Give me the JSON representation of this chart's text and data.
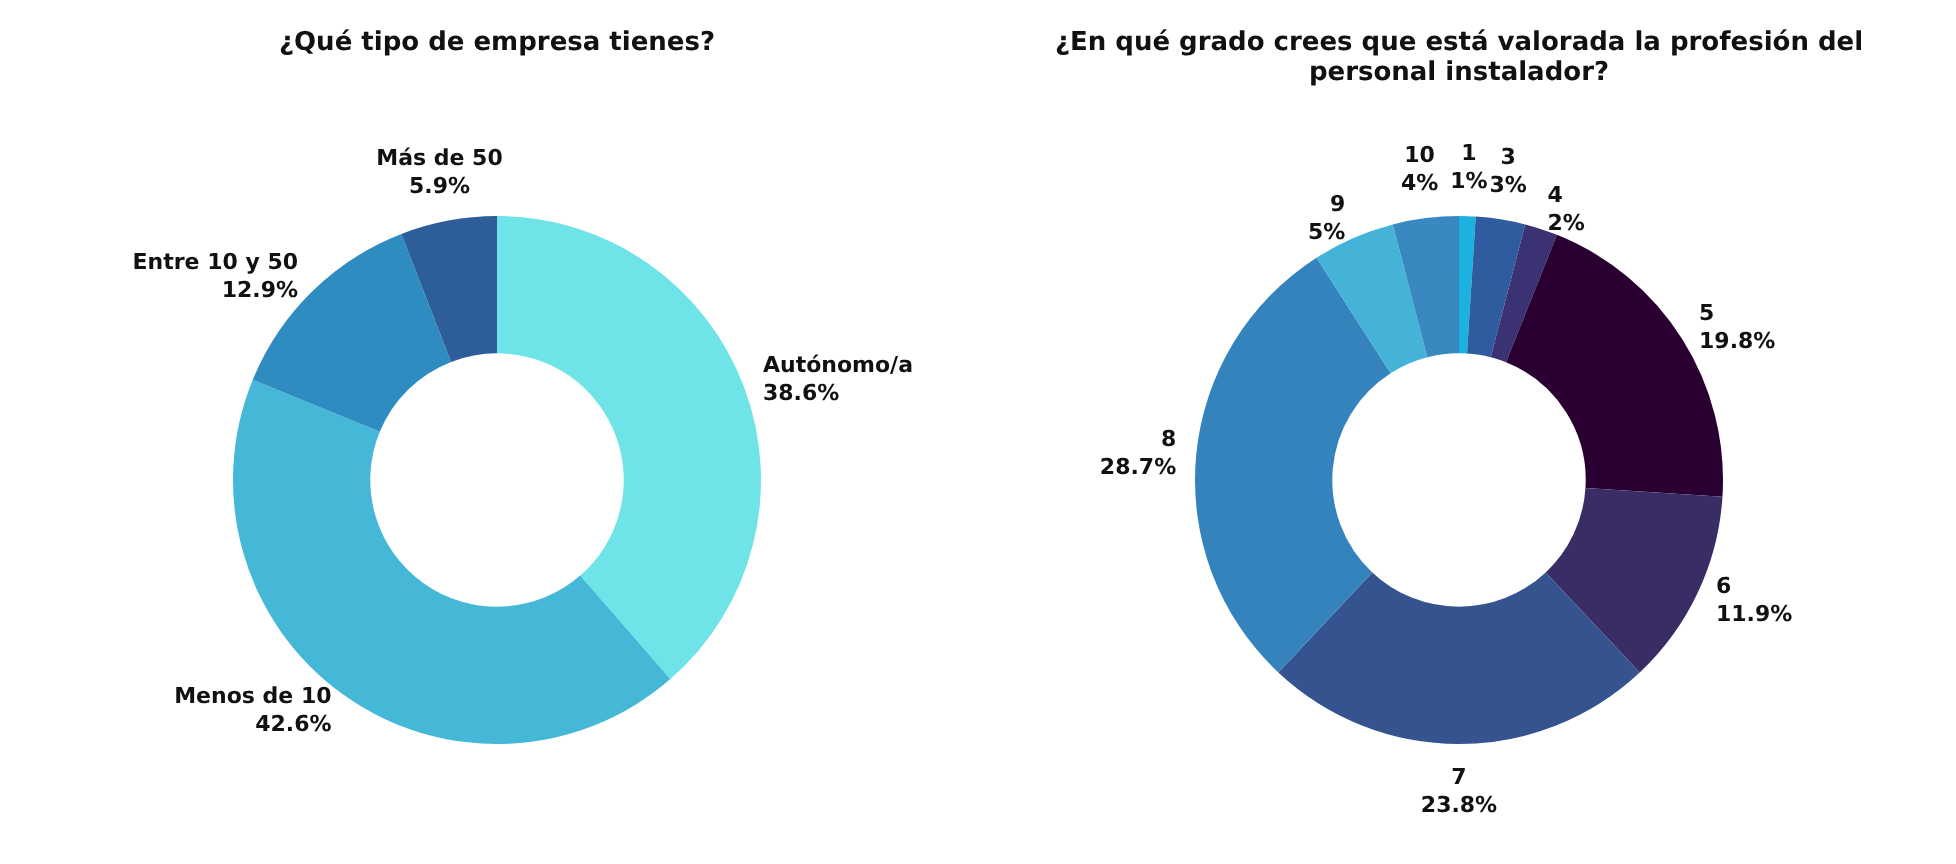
{
  "chart_data": [
    {
      "type": "donut",
      "title": "¿Qué tipo de empresa tienes?",
      "categories": [
        "Autónomo/a",
        "Menos de 10",
        "Entre 10 y 50",
        "Más de 50"
      ],
      "values": [
        38.6,
        42.6,
        12.9,
        5.9
      ],
      "value_labels": [
        "38.6%",
        "42.6%",
        "12.9%",
        "5.9%"
      ],
      "colors": [
        "#6ee4e8",
        "#45b8d8",
        "#2e8cc0",
        "#2d5e9a"
      ],
      "legend": false
    },
    {
      "type": "donut",
      "title": "¿En qué grado crees que está valorada la profesión del personal instalador?",
      "categories": [
        "1",
        "3",
        "4",
        "5",
        "6",
        "7",
        "8",
        "9",
        "10"
      ],
      "values": [
        1,
        3,
        2,
        19.8,
        11.9,
        23.8,
        28.7,
        5,
        4
      ],
      "value_labels": [
        "1%",
        "3%",
        "2%",
        "19.8%",
        "11.9%",
        "23.8%",
        "28.7%",
        "5%",
        "4%"
      ],
      "colors": [
        "#1cb2e0",
        "#2f5c9e",
        "#3a3272",
        "#2a0032",
        "#3a2d66",
        "#35548f",
        "#3483bd",
        "#45b2d8",
        "#3a88c0"
      ],
      "legend": false
    }
  ]
}
